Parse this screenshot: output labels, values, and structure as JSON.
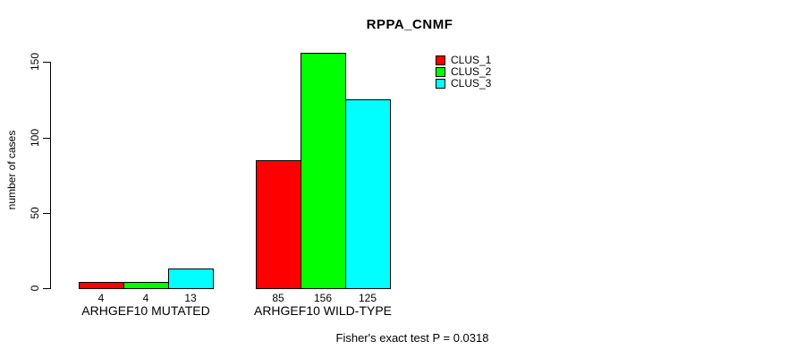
{
  "title": "RPPA_CNMF",
  "footer_annotation": "Fisher's exact test P = 0.0318",
  "y_axis_label": "number of cases",
  "chart_data": {
    "type": "bar",
    "title": "RPPA_CNMF",
    "xlabel": "",
    "ylabel": "number of cases",
    "categories": [
      "ARHGEF10 MUTATED",
      "ARHGEF10 WILD-TYPE"
    ],
    "series": [
      {
        "name": "CLUS_1",
        "color": "#ff0000",
        "values": [
          4,
          85
        ]
      },
      {
        "name": "CLUS_2",
        "color": "#00ff00",
        "values": [
          4,
          156
        ]
      },
      {
        "name": "CLUS_3",
        "color": "#00ffff",
        "values": [
          13,
          125
        ]
      }
    ],
    "bar_value_labels": [
      [
        4,
        4,
        13
      ],
      [
        85,
        156,
        125
      ]
    ],
    "yticks": [
      0,
      50,
      100,
      150
    ],
    "ylim": [
      0,
      156
    ],
    "grid": false,
    "legend_position": "top-right",
    "bar_border_color": "#000000",
    "axis_color": "#000000",
    "background_color": "#ffffff",
    "annotation": "Fisher's exact test P = 0.0318"
  }
}
